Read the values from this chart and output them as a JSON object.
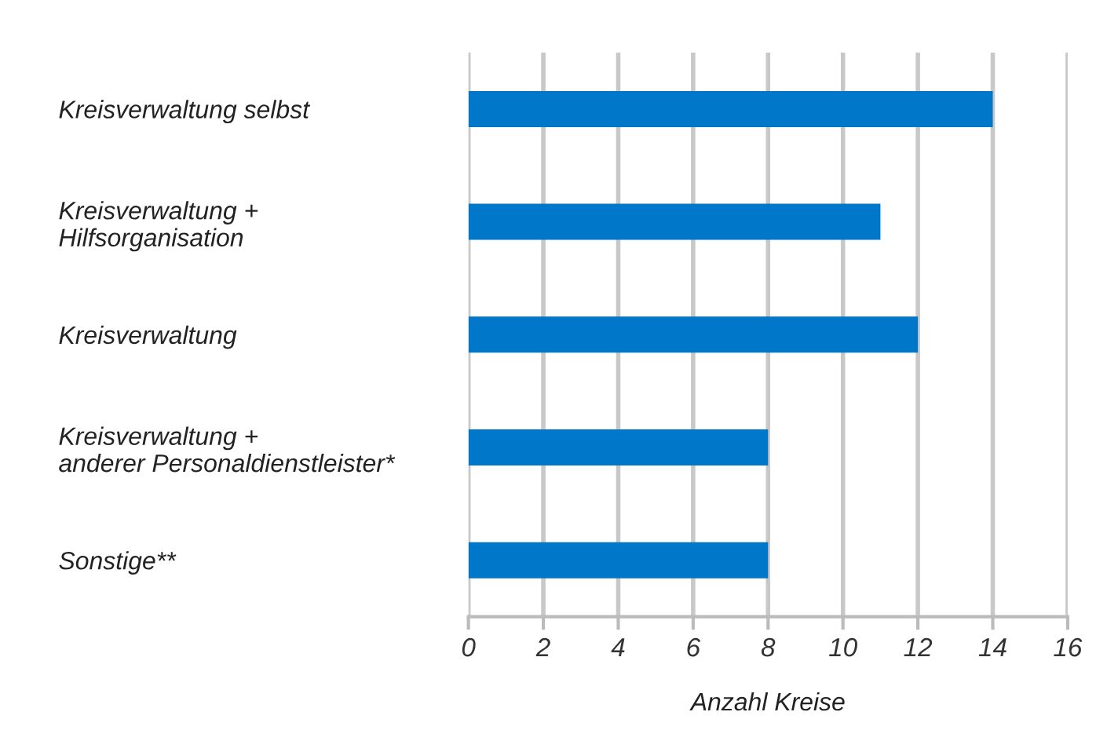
{
  "chart_data": {
    "type": "bar",
    "orientation": "horizontal",
    "categories": [
      "Kreisverwaltung selbst",
      "Kreisverwaltung +\nHilfsorganisation",
      "Kreisverwaltung",
      "Kreisverwaltung +\nanderer Personaldienstleister*",
      "Sonstige**"
    ],
    "values": [
      14,
      11,
      12,
      8,
      8
    ],
    "color": "#0077c8",
    "xlabel": "Anzahl Kreise",
    "xlim": [
      0,
      16
    ],
    "xticks": [
      0,
      2,
      4,
      6,
      8,
      10,
      12,
      14,
      16
    ],
    "grid": "x"
  }
}
